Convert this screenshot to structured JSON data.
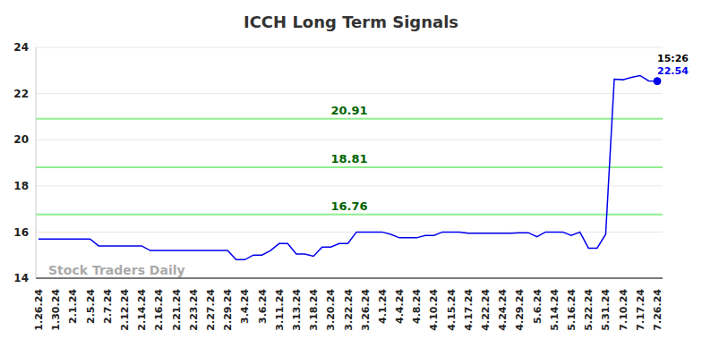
{
  "chart_data": {
    "type": "line",
    "title": "ICCH Long Term Signals",
    "watermark": "Stock Traders Daily",
    "annotations": [
      "15:26",
      "22.54"
    ],
    "categories": [
      "1.26.24",
      null,
      "1.30.24",
      null,
      "2.1.24",
      null,
      "2.5.24",
      null,
      "2.7.24",
      null,
      "2.12.24",
      null,
      "2.14.24",
      null,
      "2.16.24",
      null,
      "2.21.24",
      null,
      "2.23.24",
      null,
      "2.27.24",
      null,
      "2.29.24",
      null,
      "3.4.24",
      null,
      "3.6.24",
      null,
      "3.11.24",
      null,
      "3.13.24",
      null,
      "3.18.24",
      null,
      "3.20.24",
      null,
      "3.22.24",
      null,
      "3.26.24",
      null,
      "4.1.24",
      null,
      "4.4.24",
      null,
      "4.8.24",
      null,
      "4.10.24",
      null,
      "4.15.24",
      null,
      "4.17.24",
      null,
      "4.22.24",
      null,
      "4.24.24",
      null,
      "4.29.24",
      null,
      "5.6.24",
      null,
      "5.14.24",
      null,
      "5.16.24",
      null,
      "5.22.24",
      null,
      "5.31.24",
      null,
      "7.10.24",
      null,
      "7.17.24",
      null,
      "7.26.24"
    ],
    "values": [
      15.7,
      15.7,
      15.7,
      15.7,
      15.7,
      15.7,
      15.7,
      15.4,
      15.4,
      15.4,
      15.4,
      15.4,
      15.4,
      15.2,
      15.2,
      15.2,
      15.2,
      15.2,
      15.2,
      15.2,
      15.2,
      15.2,
      15.2,
      14.8,
      14.8,
      15.0,
      15.0,
      15.2,
      15.5,
      15.5,
      15.05,
      15.05,
      14.95,
      15.35,
      15.35,
      15.5,
      15.5,
      16.0,
      16.0,
      16.0,
      16.0,
      15.9,
      15.75,
      15.75,
      15.75,
      15.85,
      15.85,
      16.0,
      16.0,
      16.0,
      15.95,
      15.95,
      15.95,
      15.95,
      15.95,
      15.95,
      15.97,
      15.97,
      15.8,
      16.0,
      16.0,
      16.0,
      15.85,
      16.0,
      15.3,
      15.3,
      15.9,
      22.62,
      22.6,
      22.7,
      22.78,
      22.55,
      22.54
    ],
    "color": "#0000ee",
    "reference_lines": [
      20.91,
      18.81,
      16.76
    ],
    "reference_color": "#90ee90",
    "ylim": [
      14,
      24
    ],
    "yticks": [
      14,
      16,
      18,
      20,
      22,
      24
    ],
    "grid": true
  }
}
